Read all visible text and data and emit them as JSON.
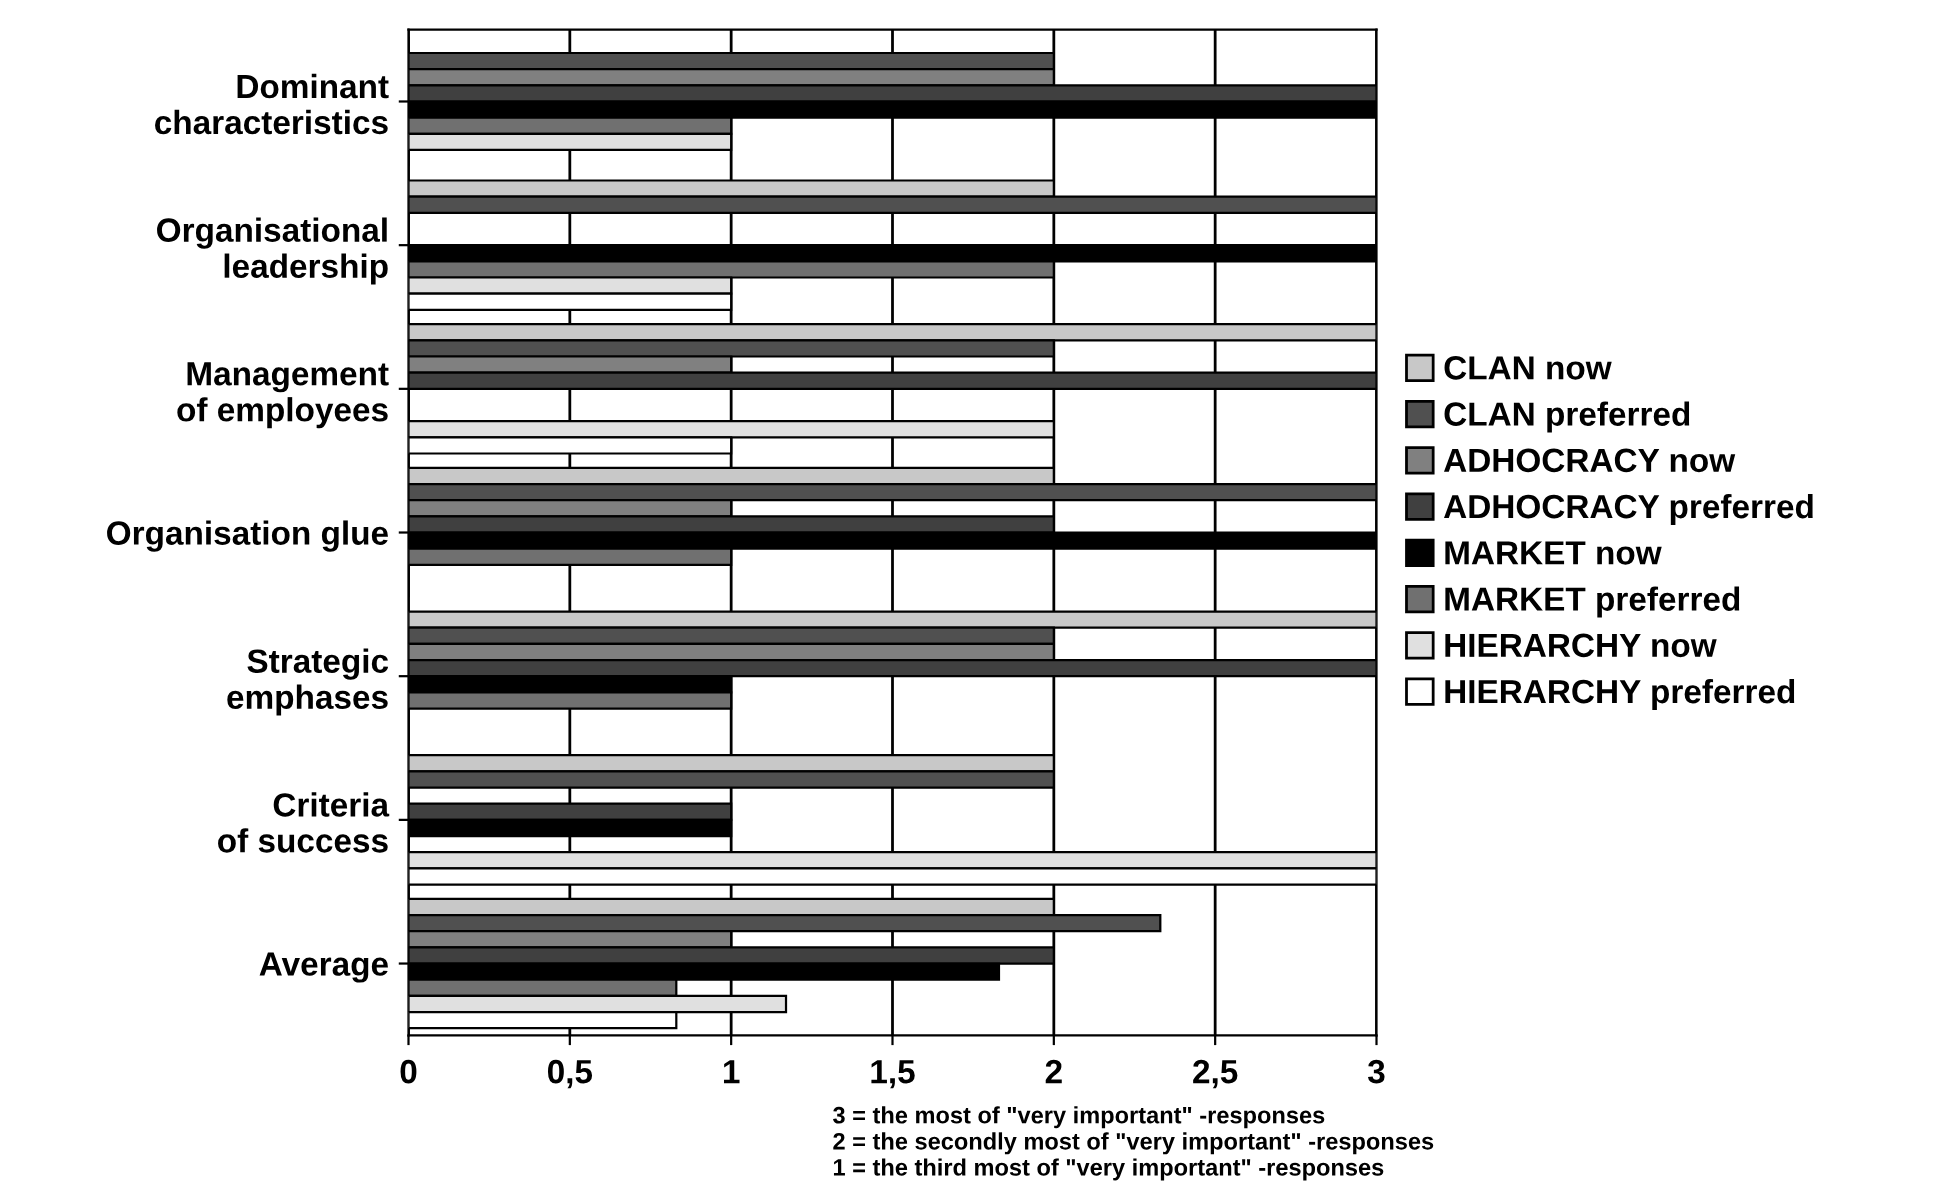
{
  "chart_data": {
    "type": "bar",
    "orientation": "horizontal",
    "categories": [
      "Dominant\ncharacteristics",
      "Organisational\nleadership",
      "Management\nof employees",
      "Organisation glue",
      "Strategic\nemphases",
      "Criteria\nof success",
      "Average"
    ],
    "series": [
      {
        "name": "CLAN now",
        "color": "#c8c8c8",
        "values": [
          0,
          2,
          3,
          2,
          3,
          2,
          2
        ]
      },
      {
        "name": "CLAN preferred",
        "color": "#505050",
        "values": [
          2,
          3,
          2,
          3,
          2,
          2,
          2.33
        ]
      },
      {
        "name": "ADHOCRACY now",
        "color": "#808080",
        "values": [
          2,
          0,
          1,
          1,
          2,
          0,
          1
        ]
      },
      {
        "name": "ADHOCRACY preferred",
        "color": "#404040",
        "values": [
          3,
          0,
          3,
          2,
          3,
          1,
          2
        ]
      },
      {
        "name": "MARKET now",
        "color": "#000000",
        "values": [
          3,
          3,
          0,
          3,
          1,
          1,
          1.83
        ]
      },
      {
        "name": "MARKET preferred",
        "color": "#707070",
        "values": [
          1,
          2,
          0,
          1,
          1,
          0,
          0.83
        ]
      },
      {
        "name": "HIERARCHY now",
        "color": "#e0e0e0",
        "values": [
          1,
          1,
          2,
          0,
          0,
          3,
          1.17
        ]
      },
      {
        "name": "HIERARCHY preferred",
        "color": "#ffffff",
        "values": [
          0,
          1,
          1,
          0,
          0,
          3,
          0.83
        ]
      }
    ],
    "xlim": [
      0,
      3
    ],
    "xticks": [
      0,
      {
        "value": 0.5,
        "label": "0,5"
      },
      1,
      {
        "value": 1.5,
        "label": "1,5"
      },
      2,
      {
        "value": 2.5,
        "label": "2,5"
      },
      3
    ],
    "grid": "x",
    "legend": "right",
    "annotations": [
      "3 = the most of \"very important\" -responses",
      "2 = the secondly most of \"very important\" -responses",
      "1 = the third most of \"very important\" -responses"
    ]
  }
}
